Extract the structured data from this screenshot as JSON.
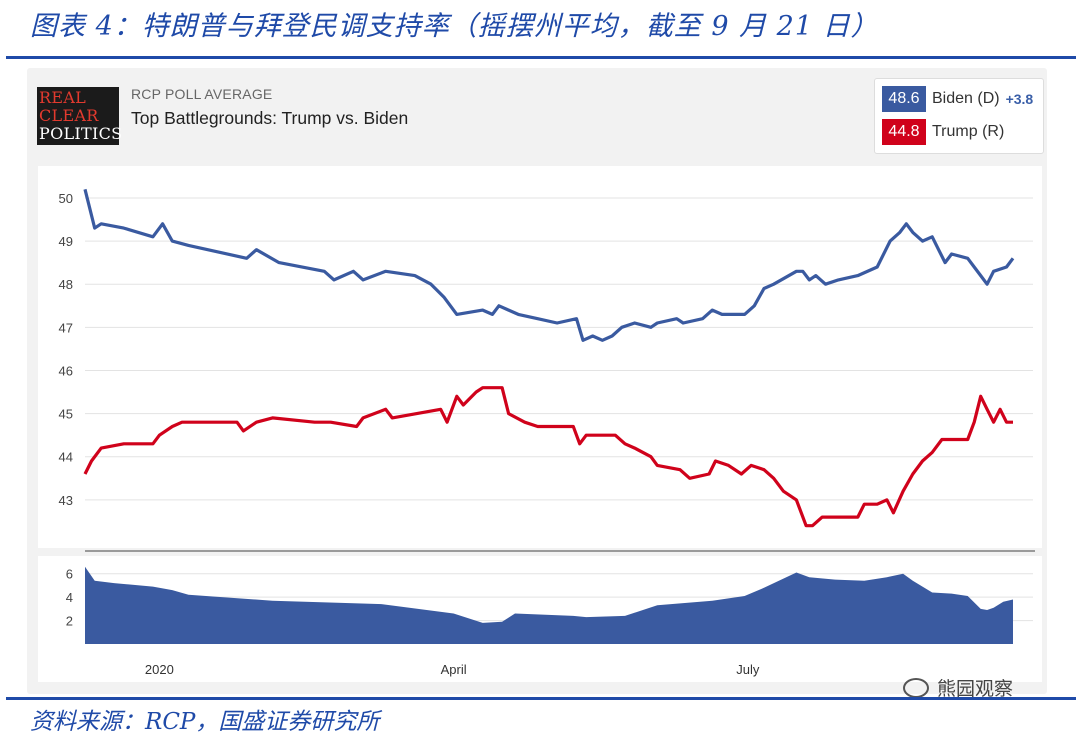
{
  "figure": {
    "title": "图表 4：特朗普与拜登民调支持率（摇摆州平均，截至 9 月 21 日）",
    "source": "资料来源：RCP，国盛证券研究所",
    "watermark": "熊园观察"
  },
  "logo": {
    "line1": "REAL",
    "line2": "CLEAR",
    "line3": "POLITICS"
  },
  "header": {
    "kicker": "RCP POLL AVERAGE",
    "subtitle": "Top Battlegrounds: Trump vs. Biden"
  },
  "legend": [
    {
      "value": "48.6",
      "name": "Biden (D)",
      "spread": "+3.8",
      "color": "#3a5aa0"
    },
    {
      "value": "44.8",
      "name": "Trump (R)",
      "spread": "",
      "color": "#d0021b"
    }
  ],
  "chart_data": [
    {
      "type": "line",
      "x_type": "date",
      "xlim": [
        "2019-12-09",
        "2020-09-21"
      ],
      "x_ticks": [
        {
          "date": "2020-01-01",
          "label": "2020"
        },
        {
          "date": "2020-04-01",
          "label": "April"
        },
        {
          "date": "2020-07-01",
          "label": "July"
        }
      ],
      "ylim": [
        42,
        50.3
      ],
      "y_ticks": [
        43,
        44,
        45,
        46,
        47,
        48,
        49,
        50
      ],
      "grid": true,
      "series": [
        {
          "name": "Biden (D)",
          "color": "#3a5aa0",
          "points": [
            [
              "2019-12-09",
              50.2
            ],
            [
              "2019-12-12",
              49.3
            ],
            [
              "2019-12-14",
              49.4
            ],
            [
              "2019-12-21",
              49.3
            ],
            [
              "2019-12-30",
              49.1
            ],
            [
              "2020-01-02",
              49.4
            ],
            [
              "2020-01-05",
              49.0
            ],
            [
              "2020-01-10",
              48.9
            ],
            [
              "2020-01-28",
              48.6
            ],
            [
              "2020-01-31",
              48.8
            ],
            [
              "2020-02-07",
              48.5
            ],
            [
              "2020-02-21",
              48.3
            ],
            [
              "2020-02-24",
              48.1
            ],
            [
              "2020-03-01",
              48.3
            ],
            [
              "2020-03-04",
              48.1
            ],
            [
              "2020-03-11",
              48.3
            ],
            [
              "2020-03-20",
              48.2
            ],
            [
              "2020-03-25",
              48.0
            ],
            [
              "2020-03-29",
              47.7
            ],
            [
              "2020-04-02",
              47.3
            ],
            [
              "2020-04-10",
              47.4
            ],
            [
              "2020-04-13",
              47.3
            ],
            [
              "2020-04-15",
              47.5
            ],
            [
              "2020-04-18",
              47.4
            ],
            [
              "2020-04-21",
              47.3
            ],
            [
              "2020-04-27",
              47.2
            ],
            [
              "2020-05-03",
              47.1
            ],
            [
              "2020-05-09",
              47.2
            ],
            [
              "2020-05-11",
              46.7
            ],
            [
              "2020-05-14",
              46.8
            ],
            [
              "2020-05-17",
              46.7
            ],
            [
              "2020-05-20",
              46.8
            ],
            [
              "2020-05-23",
              47.0
            ],
            [
              "2020-05-27",
              47.1
            ],
            [
              "2020-06-01",
              47.0
            ],
            [
              "2020-06-03",
              47.1
            ],
            [
              "2020-06-09",
              47.2
            ],
            [
              "2020-06-11",
              47.1
            ],
            [
              "2020-06-17",
              47.2
            ],
            [
              "2020-06-20",
              47.4
            ],
            [
              "2020-06-23",
              47.3
            ],
            [
              "2020-06-30",
              47.3
            ],
            [
              "2020-07-03",
              47.5
            ],
            [
              "2020-07-06",
              47.9
            ],
            [
              "2020-07-09",
              48.0
            ],
            [
              "2020-07-16",
              48.3
            ],
            [
              "2020-07-18",
              48.3
            ],
            [
              "2020-07-20",
              48.1
            ],
            [
              "2020-07-22",
              48.2
            ],
            [
              "2020-07-25",
              48.0
            ],
            [
              "2020-07-29",
              48.1
            ],
            [
              "2020-08-04",
              48.2
            ],
            [
              "2020-08-10",
              48.4
            ],
            [
              "2020-08-14",
              49.0
            ],
            [
              "2020-08-17",
              49.2
            ],
            [
              "2020-08-19",
              49.4
            ],
            [
              "2020-08-21",
              49.2
            ],
            [
              "2020-08-24",
              49.0
            ],
            [
              "2020-08-27",
              49.1
            ],
            [
              "2020-08-29",
              48.8
            ],
            [
              "2020-08-31",
              48.5
            ],
            [
              "2020-09-02",
              48.7
            ],
            [
              "2020-09-07",
              48.6
            ],
            [
              "2020-09-09",
              48.4
            ],
            [
              "2020-09-11",
              48.2
            ],
            [
              "2020-09-13",
              48.0
            ],
            [
              "2020-09-15",
              48.3
            ],
            [
              "2020-09-19",
              48.4
            ],
            [
              "2020-09-21",
              48.6
            ]
          ]
        },
        {
          "name": "Trump (R)",
          "color": "#d0021b",
          "points": [
            [
              "2019-12-09",
              43.6
            ],
            [
              "2019-12-11",
              43.9
            ],
            [
              "2019-12-14",
              44.2
            ],
            [
              "2019-12-21",
              44.3
            ],
            [
              "2019-12-30",
              44.3
            ],
            [
              "2020-01-01",
              44.5
            ],
            [
              "2020-01-05",
              44.7
            ],
            [
              "2020-01-08",
              44.8
            ],
            [
              "2020-01-25",
              44.8
            ],
            [
              "2020-01-27",
              44.6
            ],
            [
              "2020-01-31",
              44.8
            ],
            [
              "2020-02-05",
              44.9
            ],
            [
              "2020-02-18",
              44.8
            ],
            [
              "2020-02-23",
              44.8
            ],
            [
              "2020-03-02",
              44.7
            ],
            [
              "2020-03-04",
              44.9
            ],
            [
              "2020-03-11",
              45.1
            ],
            [
              "2020-03-13",
              44.9
            ],
            [
              "2020-03-28",
              45.1
            ],
            [
              "2020-03-30",
              44.8
            ],
            [
              "2020-04-02",
              45.4
            ],
            [
              "2020-04-04",
              45.2
            ],
            [
              "2020-04-08",
              45.5
            ],
            [
              "2020-04-10",
              45.6
            ],
            [
              "2020-04-16",
              45.6
            ],
            [
              "2020-04-18",
              45.0
            ],
            [
              "2020-04-23",
              44.8
            ],
            [
              "2020-04-27",
              44.7
            ],
            [
              "2020-05-08",
              44.7
            ],
            [
              "2020-05-10",
              44.3
            ],
            [
              "2020-05-12",
              44.5
            ],
            [
              "2020-05-21",
              44.5
            ],
            [
              "2020-05-24",
              44.3
            ],
            [
              "2020-05-27",
              44.2
            ],
            [
              "2020-06-01",
              44.0
            ],
            [
              "2020-06-03",
              43.8
            ],
            [
              "2020-06-10",
              43.7
            ],
            [
              "2020-06-13",
              43.5
            ],
            [
              "2020-06-19",
              43.6
            ],
            [
              "2020-06-21",
              43.9
            ],
            [
              "2020-06-25",
              43.8
            ],
            [
              "2020-06-29",
              43.6
            ],
            [
              "2020-07-02",
              43.8
            ],
            [
              "2020-07-06",
              43.7
            ],
            [
              "2020-07-09",
              43.5
            ],
            [
              "2020-07-12",
              43.2
            ],
            [
              "2020-07-16",
              43.0
            ],
            [
              "2020-07-19",
              42.4
            ],
            [
              "2020-07-21",
              42.4
            ],
            [
              "2020-07-24",
              42.6
            ],
            [
              "2020-08-04",
              42.6
            ],
            [
              "2020-08-06",
              42.9
            ],
            [
              "2020-08-10",
              42.9
            ],
            [
              "2020-08-13",
              43.0
            ],
            [
              "2020-08-15",
              42.7
            ],
            [
              "2020-08-18",
              43.2
            ],
            [
              "2020-08-21",
              43.6
            ],
            [
              "2020-08-24",
              43.9
            ],
            [
              "2020-08-27",
              44.1
            ],
            [
              "2020-08-30",
              44.4
            ],
            [
              "2020-09-07",
              44.4
            ],
            [
              "2020-09-09",
              44.8
            ],
            [
              "2020-09-11",
              45.4
            ],
            [
              "2020-09-13",
              45.1
            ],
            [
              "2020-09-15",
              44.8
            ],
            [
              "2020-09-17",
              45.1
            ],
            [
              "2020-09-19",
              44.8
            ],
            [
              "2020-09-21",
              44.8
            ]
          ]
        }
      ]
    },
    {
      "type": "area",
      "x_type": "date",
      "xlim": [
        "2019-12-09",
        "2020-09-21"
      ],
      "ylim": [
        0,
        7
      ],
      "y_ticks": [
        2,
        4,
        6
      ],
      "grid": true,
      "color": "#3a5aa0",
      "points": [
        [
          "2019-12-09",
          6.6
        ],
        [
          "2019-12-12",
          5.4
        ],
        [
          "2019-12-18",
          5.2
        ],
        [
          "2019-12-30",
          4.9
        ],
        [
          "2020-01-05",
          4.6
        ],
        [
          "2020-01-10",
          4.2
        ],
        [
          "2020-02-05",
          3.7
        ],
        [
          "2020-03-10",
          3.4
        ],
        [
          "2020-04-01",
          2.6
        ],
        [
          "2020-04-10",
          1.8
        ],
        [
          "2020-04-16",
          1.9
        ],
        [
          "2020-04-20",
          2.6
        ],
        [
          "2020-05-08",
          2.4
        ],
        [
          "2020-05-12",
          2.3
        ],
        [
          "2020-05-24",
          2.4
        ],
        [
          "2020-06-03",
          3.3
        ],
        [
          "2020-06-20",
          3.7
        ],
        [
          "2020-06-30",
          4.1
        ],
        [
          "2020-07-06",
          4.8
        ],
        [
          "2020-07-16",
          6.1
        ],
        [
          "2020-07-20",
          5.7
        ],
        [
          "2020-07-28",
          5.5
        ],
        [
          "2020-08-06",
          5.4
        ],
        [
          "2020-08-13",
          5.7
        ],
        [
          "2020-08-18",
          6.0
        ],
        [
          "2020-08-21",
          5.4
        ],
        [
          "2020-08-27",
          4.4
        ],
        [
          "2020-09-02",
          4.3
        ],
        [
          "2020-09-07",
          4.1
        ],
        [
          "2020-09-11",
          3.0
        ],
        [
          "2020-09-13",
          2.9
        ],
        [
          "2020-09-15",
          3.1
        ],
        [
          "2020-09-18",
          3.6
        ],
        [
          "2020-09-21",
          3.8
        ]
      ]
    }
  ]
}
